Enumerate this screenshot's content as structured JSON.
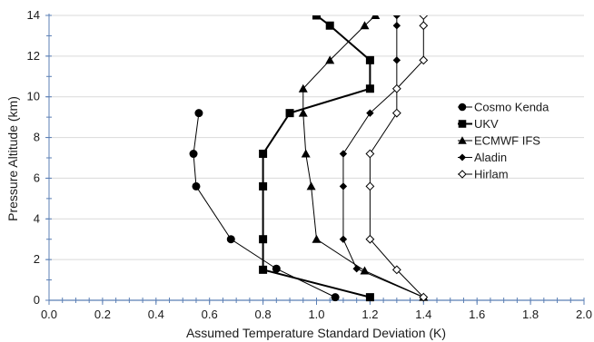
{
  "chart_data": {
    "type": "line",
    "title": "",
    "xlabel": "Assumed Temperature Standard Deviation (K)",
    "ylabel": "Pressure Altitude (km)",
    "xlim": [
      0.0,
      2.0
    ],
    "ylim": [
      0,
      14
    ],
    "x_ticks": [
      "0.0",
      "0.2",
      "0.4",
      "0.6",
      "0.8",
      "1.0",
      "1.2",
      "1.4",
      "1.6",
      "1.8",
      "2.0"
    ],
    "y_ticks": [
      "0",
      "2",
      "4",
      "6",
      "8",
      "10",
      "12",
      "14"
    ],
    "grid": "horizontal",
    "legend_position": "right",
    "series": [
      {
        "name": "Cosmo Kenda",
        "marker": "circle",
        "color": "#000000",
        "points": [
          [
            1.07,
            0.15
          ],
          [
            0.85,
            1.55
          ],
          [
            0.68,
            3.0
          ],
          [
            0.55,
            5.6
          ],
          [
            0.54,
            7.2
          ],
          [
            0.56,
            9.2
          ]
        ]
      },
      {
        "name": "UKV",
        "marker": "square",
        "color": "#000000",
        "points": [
          [
            1.2,
            0.15
          ],
          [
            0.8,
            1.5
          ],
          [
            0.8,
            3.0
          ],
          [
            0.8,
            5.6
          ],
          [
            0.8,
            7.2
          ],
          [
            0.9,
            9.2
          ],
          [
            1.2,
            10.4
          ],
          [
            1.2,
            11.8
          ],
          [
            1.05,
            13.5
          ],
          [
            1.0,
            14.0
          ]
        ]
      },
      {
        "name": "ECMWF IFS",
        "marker": "triangle",
        "color": "#000000",
        "points": [
          [
            1.4,
            0.15
          ],
          [
            1.18,
            1.45
          ],
          [
            1.0,
            3.0
          ],
          [
            0.98,
            5.6
          ],
          [
            0.96,
            7.2
          ],
          [
            0.95,
            9.2
          ],
          [
            0.95,
            10.4
          ],
          [
            1.05,
            11.8
          ],
          [
            1.18,
            13.5
          ],
          [
            1.22,
            14.0
          ]
        ]
      },
      {
        "name": "Aladin",
        "marker": "diamond",
        "color": "#000000",
        "points": [
          [
            1.4,
            0.15
          ],
          [
            1.15,
            1.55
          ],
          [
            1.1,
            3.0
          ],
          [
            1.1,
            5.6
          ],
          [
            1.1,
            7.2
          ],
          [
            1.2,
            9.2
          ],
          [
            1.3,
            10.4
          ],
          [
            1.3,
            11.8
          ],
          [
            1.3,
            13.5
          ],
          [
            1.3,
            14.0
          ]
        ]
      },
      {
        "name": "Hirlam",
        "marker": "diamond-open",
        "color": "#000000",
        "points": [
          [
            1.4,
            0.15
          ],
          [
            1.3,
            1.5
          ],
          [
            1.2,
            3.0
          ],
          [
            1.2,
            5.6
          ],
          [
            1.2,
            7.2
          ],
          [
            1.3,
            9.2
          ],
          [
            1.3,
            10.4
          ],
          [
            1.4,
            11.8
          ],
          [
            1.4,
            13.5
          ],
          [
            1.4,
            14.0
          ]
        ]
      }
    ]
  }
}
